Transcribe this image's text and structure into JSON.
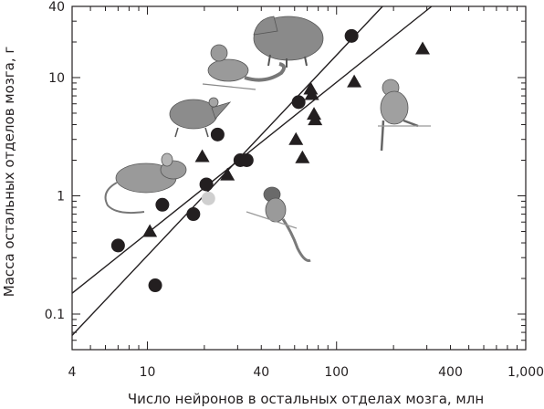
{
  "chart_data": {
    "type": "scatter",
    "title": "",
    "xlabel": "Число нейронов в остальных отделах мозга, млн",
    "ylabel": "Масса остальных отделов мозга, г",
    "xscale": "log",
    "yscale": "log",
    "xlim": [
      4,
      1000
    ],
    "ylim": [
      0.05,
      40
    ],
    "grid": false,
    "legend": "none",
    "x_tick_labels": [
      {
        "value": 4,
        "label": "4"
      },
      {
        "value": 10,
        "label": "10"
      },
      {
        "value": 40,
        "label": "40"
      },
      {
        "value": 100,
        "label": "100"
      },
      {
        "value": 400,
        "label": "400"
      },
      {
        "value": 1000,
        "label": "1,000"
      }
    ],
    "y_tick_labels": [
      {
        "value": 0.1,
        "label": "0.1"
      },
      {
        "value": 1,
        "label": "1"
      },
      {
        "value": 10,
        "label": "10"
      },
      {
        "value": 40,
        "label": "40"
      }
    ],
    "series": [
      {
        "marker": "circle",
        "color": "#231f20",
        "points": [
          {
            "x": 7,
            "y": 0.38
          },
          {
            "x": 11,
            "y": 0.175
          },
          {
            "x": 12,
            "y": 0.84
          },
          {
            "x": 17.5,
            "y": 0.7
          },
          {
            "x": 20.5,
            "y": 1.25
          },
          {
            "x": 23.5,
            "y": 3.3
          },
          {
            "x": 31,
            "y": 2.0
          },
          {
            "x": 33.5,
            "y": 2.0
          },
          {
            "x": 63,
            "y": 6.2
          },
          {
            "x": 120,
            "y": 22.5
          }
        ]
      },
      {
        "marker": "circle",
        "color": "#cfcfcf",
        "points": [
          {
            "x": 21,
            "y": 0.95
          }
        ]
      },
      {
        "marker": "triangle",
        "color": "#231f20",
        "points": [
          {
            "x": 10.3,
            "y": 0.5
          },
          {
            "x": 19.5,
            "y": 2.15
          },
          {
            "x": 26.5,
            "y": 1.5
          },
          {
            "x": 61,
            "y": 3.0
          },
          {
            "x": 66,
            "y": 2.1
          },
          {
            "x": 73,
            "y": 8.0
          },
          {
            "x": 74,
            "y": 7.2
          },
          {
            "x": 76,
            "y": 4.9
          },
          {
            "x": 77,
            "y": 4.4
          },
          {
            "x": 124,
            "y": 9.2
          },
          {
            "x": 285,
            "y": 17.5
          }
        ]
      }
    ],
    "fit_lines": [
      {
        "x1": 4,
        "y1": 0.066,
        "x2": 175,
        "y2": 40
      },
      {
        "x1": 4,
        "y1": 0.15,
        "x2": 318,
        "y2": 40
      }
    ]
  },
  "illustrations": [
    {
      "name": "mouse-illustration",
      "color": "#8f8f8f"
    },
    {
      "name": "shrew-illustration",
      "color": "#8f8f8f"
    },
    {
      "name": "tree-shrew-illustration",
      "color": "#8f8f8f"
    },
    {
      "name": "capybara-illustration",
      "color": "#8f8f8f"
    },
    {
      "name": "marmoset-illustration",
      "color": "#8f8f8f"
    },
    {
      "name": "macaque-illustration",
      "color": "#8f8f8f"
    }
  ]
}
